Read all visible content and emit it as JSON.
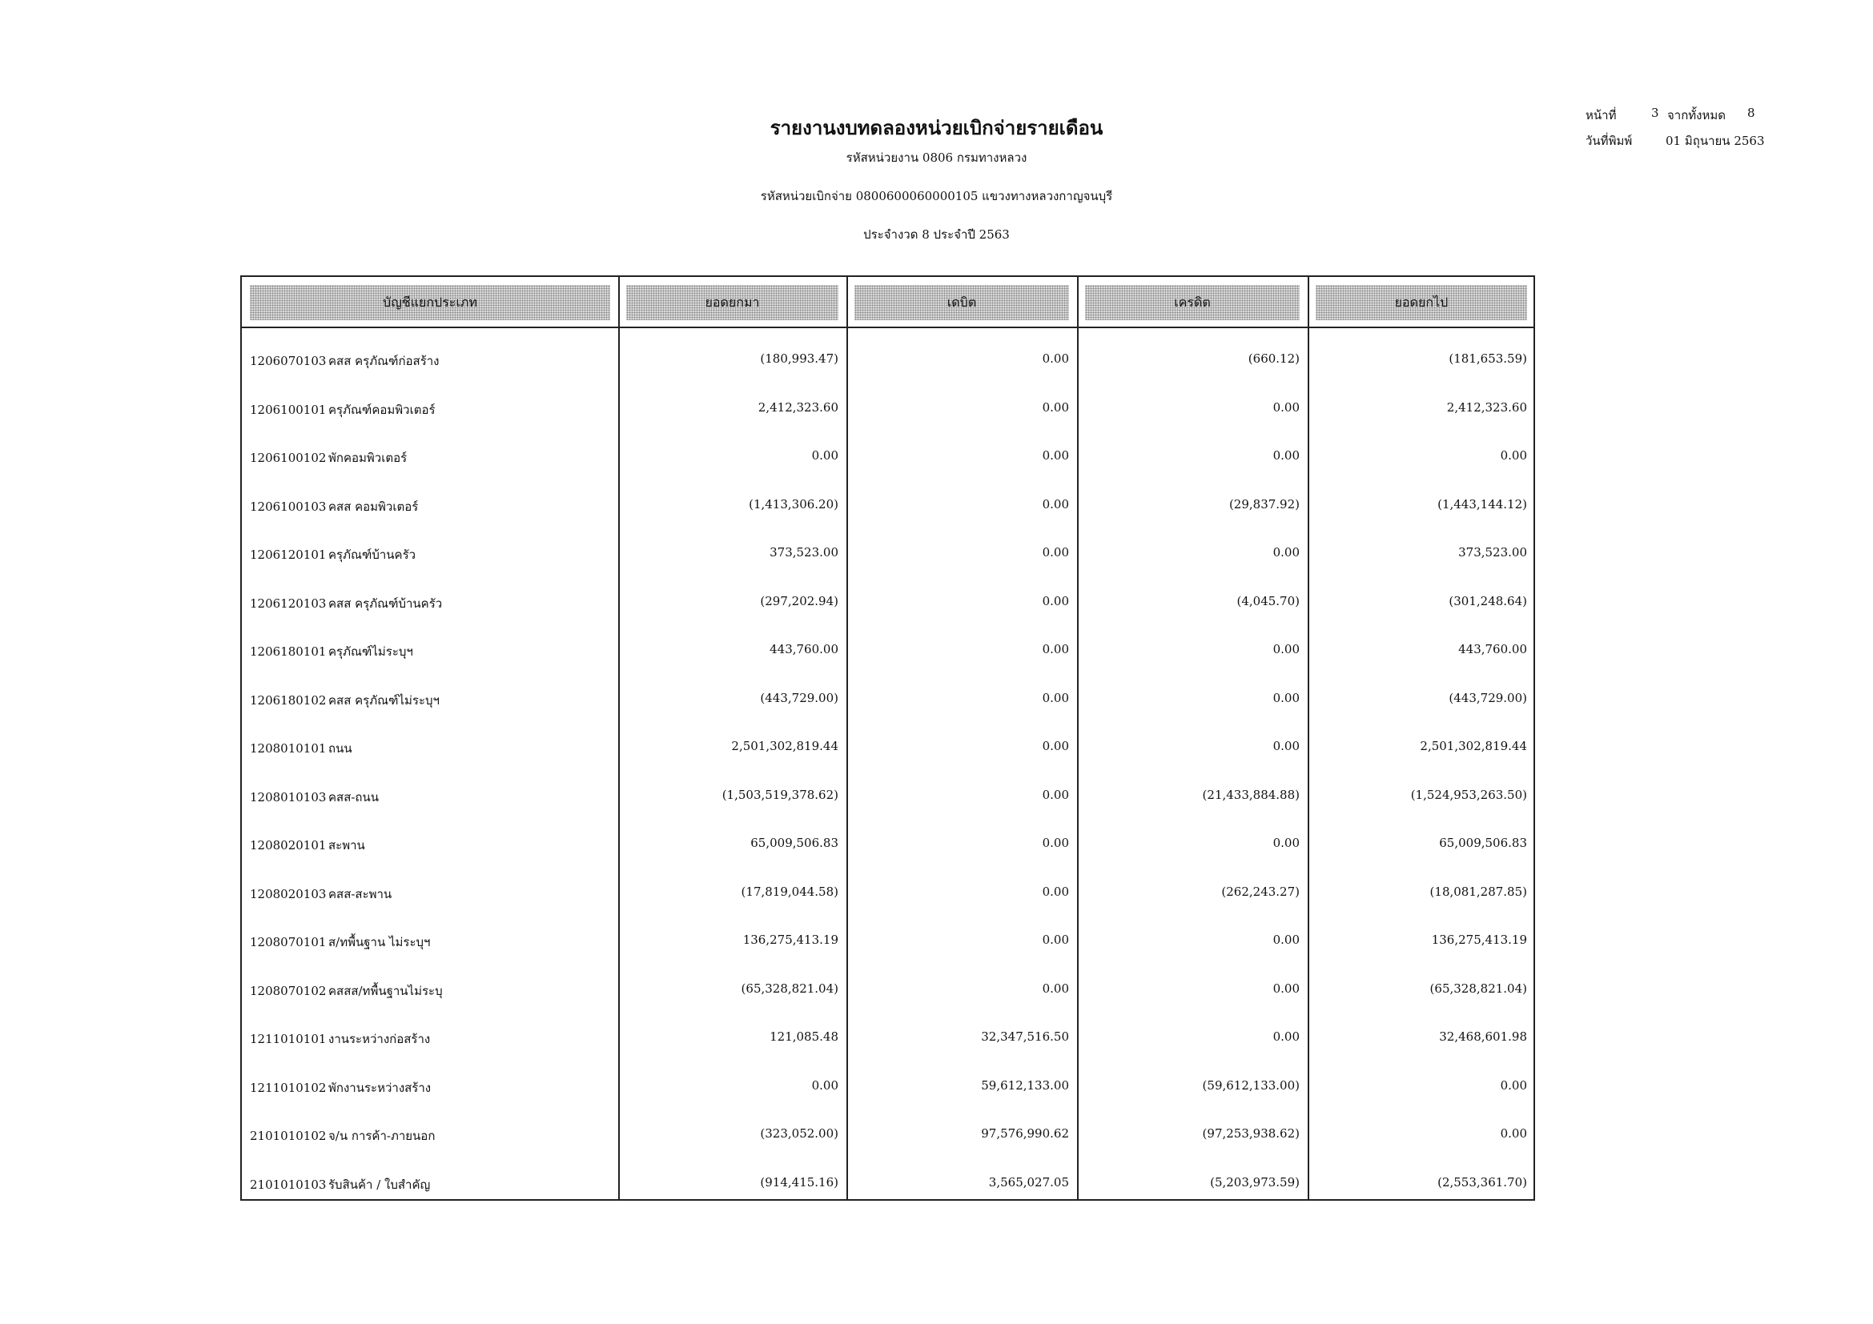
{
  "header": {
    "title": "รายงานงบทดลองหน่วยเบิกจ่ายรายเดือน",
    "agency": "รหัสหน่วยงาน 0806 กรมทางหลวง",
    "disbursing_unit": "รหัสหน่วยเบิกจ่าย 0800600060000105 แขวงทางหลวงกาญจนบุรี",
    "period": "ประจำงวด 8 ประจำปี 2563",
    "page_label": "หน้าที่",
    "page": "3",
    "of_label": "จากทั้งหมด",
    "total_pages": "8",
    "print_date_label": "วันที่พิมพ์",
    "print_date": "01 มิถุนายน 2563"
  },
  "table": {
    "columns": [
      "บัญชีแยกประเภท",
      "ยอดยกมา",
      "เดบิต",
      "เครดิต",
      "ยอดยกไป"
    ],
    "rows": [
      [
        "1206070103",
        "คสส ครุภัณฑ์ก่อสร้าง",
        "(180,993.47)",
        "0.00",
        "(660.12)",
        "(181,653.59)"
      ],
      [
        "1206100101",
        "ครุภัณฑ์คอมพิวเตอร์",
        "2,412,323.60",
        "0.00",
        "0.00",
        "2,412,323.60"
      ],
      [
        "1206100102",
        "พักคอมพิวเตอร์",
        "0.00",
        "0.00",
        "0.00",
        "0.00"
      ],
      [
        "1206100103",
        "คสส คอมพิวเตอร์",
        "(1,413,306.20)",
        "0.00",
        "(29,837.92)",
        "(1,443,144.12)"
      ],
      [
        "1206120101",
        "ครุภัณฑ์บ้านครัว",
        "373,523.00",
        "0.00",
        "0.00",
        "373,523.00"
      ],
      [
        "1206120103",
        "คสส ครุภัณฑ์บ้านครัว",
        "(297,202.94)",
        "0.00",
        "(4,045.70)",
        "(301,248.64)"
      ],
      [
        "1206180101",
        "ครุภัณฑ์ไม่ระบุฯ",
        "443,760.00",
        "0.00",
        "0.00",
        "443,760.00"
      ],
      [
        "1206180102",
        "คสส ครุภัณฑ์ไม่ระบุฯ",
        "(443,729.00)",
        "0.00",
        "0.00",
        "(443,729.00)"
      ],
      [
        "1208010101",
        "ถนน",
        "2,501,302,819.44",
        "0.00",
        "0.00",
        "2,501,302,819.44"
      ],
      [
        "1208010103",
        "คสส-ถนน",
        "(1,503,519,378.62)",
        "0.00",
        "(21,433,884.88)",
        "(1,524,953,263.50)"
      ],
      [
        "1208020101",
        "สะพาน",
        "65,009,506.83",
        "0.00",
        "0.00",
        "65,009,506.83"
      ],
      [
        "1208020103",
        "คสส-สะพาน",
        "(17,819,044.58)",
        "0.00",
        "(262,243.27)",
        "(18,081,287.85)"
      ],
      [
        "1208070101",
        "ส/ทพื้นฐาน ไม่ระบุฯ",
        "136,275,413.19",
        "0.00",
        "0.00",
        "136,275,413.19"
      ],
      [
        "1208070102",
        "คสสส/ทพื้นฐานไม่ระบุ",
        "(65,328,821.04)",
        "0.00",
        "0.00",
        "(65,328,821.04)"
      ],
      [
        "1211010101",
        "งานระหว่างก่อสร้าง",
        "121,085.48",
        "32,347,516.50",
        "0.00",
        "32,468,601.98"
      ],
      [
        "1211010102",
        "พักงานระหว่างสร้าง",
        "0.00",
        "59,612,133.00",
        "(59,612,133.00)",
        "0.00"
      ],
      [
        "2101010102",
        "จ/น การค้า-ภายนอก",
        "(323,052.00)",
        "97,576,990.62",
        "(97,253,938.62)",
        "0.00"
      ],
      [
        "2101010103",
        "รับสินค้า / ใบสำคัญ",
        "(914,415.16)",
        "3,565,027.05",
        "(5,203,973.59)",
        "(2,553,361.70)"
      ]
    ]
  }
}
